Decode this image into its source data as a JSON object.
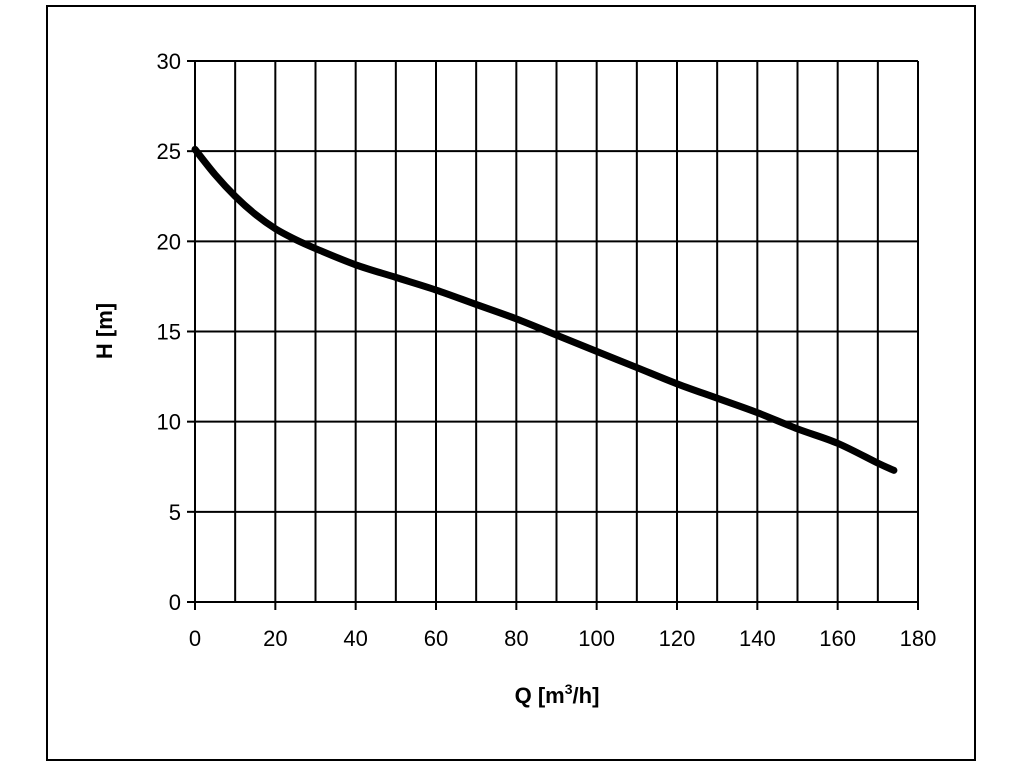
{
  "chart_data": {
    "type": "line",
    "xlabel": "Q [m",
    "xlabel_sup": "3",
    "xlabel_end": "/h]",
    "ylabel": "H [m]",
    "xlim": [
      0,
      180
    ],
    "ylim": [
      0,
      30
    ],
    "x_ticks": [
      0,
      20,
      40,
      60,
      80,
      100,
      120,
      140,
      160,
      180
    ],
    "y_ticks": [
      0,
      5,
      10,
      15,
      20,
      25,
      30
    ],
    "x_grid_step": 10,
    "y_grid_step": 5,
    "grid": true,
    "legend": "none",
    "line_color": "#000000",
    "series": [
      {
        "x": [
          0,
          5,
          10,
          15,
          20,
          25,
          30,
          40,
          50,
          60,
          70,
          80,
          90,
          100,
          110,
          120,
          130,
          140,
          150,
          160,
          170,
          174
        ],
        "y": [
          25.1,
          23.7,
          22.5,
          21.5,
          20.7,
          20.1,
          19.6,
          18.7,
          18.0,
          17.3,
          16.5,
          15.7,
          14.8,
          13.9,
          13.0,
          12.1,
          11.3,
          10.5,
          9.6,
          8.8,
          7.7,
          7.3
        ]
      }
    ]
  }
}
